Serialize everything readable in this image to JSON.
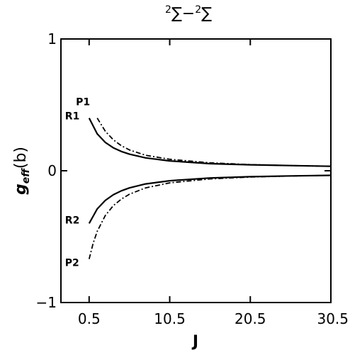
{
  "chart_data": {
    "type": "line",
    "title": {
      "sup1": "2",
      "sym1": "∑",
      "dash": "−",
      "sup2": "2",
      "sym2": "∑"
    },
    "xlabel": "J",
    "ylabel": {
      "main": "g",
      "sub": "eff",
      "suffix": "(b)"
    },
    "xlim": [
      -3,
      30.5
    ],
    "ylim": [
      -1,
      1
    ],
    "x_ticks": [
      0.5,
      10.5,
      20.5,
      30.5
    ],
    "x_tick_labels": [
      "0.5",
      "10.5",
      "20.5",
      "30.5"
    ],
    "y_ticks": [
      -1,
      0,
      1
    ],
    "y_tick_labels": [
      "−1",
      "0",
      "1"
    ],
    "grid": false,
    "series": [
      {
        "name": "R1",
        "style": "solid",
        "x": [
          0.5,
          1.5,
          2.5,
          3.5,
          4.5,
          5.5,
          7.5,
          10.5,
          15.5,
          20.5,
          25.5,
          30.5
        ],
        "y": [
          0.4,
          0.28,
          0.215,
          0.174,
          0.146,
          0.126,
          0.098,
          0.075,
          0.054,
          0.045,
          0.039,
          0.034
        ]
      },
      {
        "name": "P1",
        "style": "dashdot",
        "x": [
          1.5,
          2.5,
          3.5,
          4.5,
          5.5,
          7.5,
          10.5,
          15.5,
          20.5,
          25.5,
          30.5
        ],
        "y": [
          0.4,
          0.3,
          0.235,
          0.19,
          0.158,
          0.118,
          0.087,
          0.06,
          0.047,
          0.039,
          0.034
        ]
      },
      {
        "name": "R2",
        "style": "solid",
        "x": [
          0.5,
          1.5,
          2.5,
          3.5,
          4.5,
          5.5,
          7.5,
          10.5,
          15.5,
          20.5,
          25.5,
          30.5
        ],
        "y": [
          -0.4,
          -0.29,
          -0.225,
          -0.182,
          -0.152,
          -0.13,
          -0.1,
          -0.076,
          -0.055,
          -0.045,
          -0.039,
          -0.035
        ]
      },
      {
        "name": "P2",
        "style": "dashdot",
        "x": [
          0.5,
          1.0,
          1.5,
          2.5,
          3.5,
          4.5,
          5.5,
          7.5,
          10.5,
          15.5,
          20.5,
          25.5,
          30.5
        ],
        "y": [
          -0.67,
          -0.55,
          -0.46,
          -0.34,
          -0.265,
          -0.215,
          -0.178,
          -0.13,
          -0.092,
          -0.062,
          -0.048,
          -0.04,
          -0.035
        ]
      }
    ],
    "series_labels": [
      {
        "text": "P1",
        "series": "P1"
      },
      {
        "text": "R1",
        "series": "R1"
      },
      {
        "text": "R2",
        "series": "R2"
      },
      {
        "text": "P2",
        "series": "P2"
      }
    ]
  }
}
